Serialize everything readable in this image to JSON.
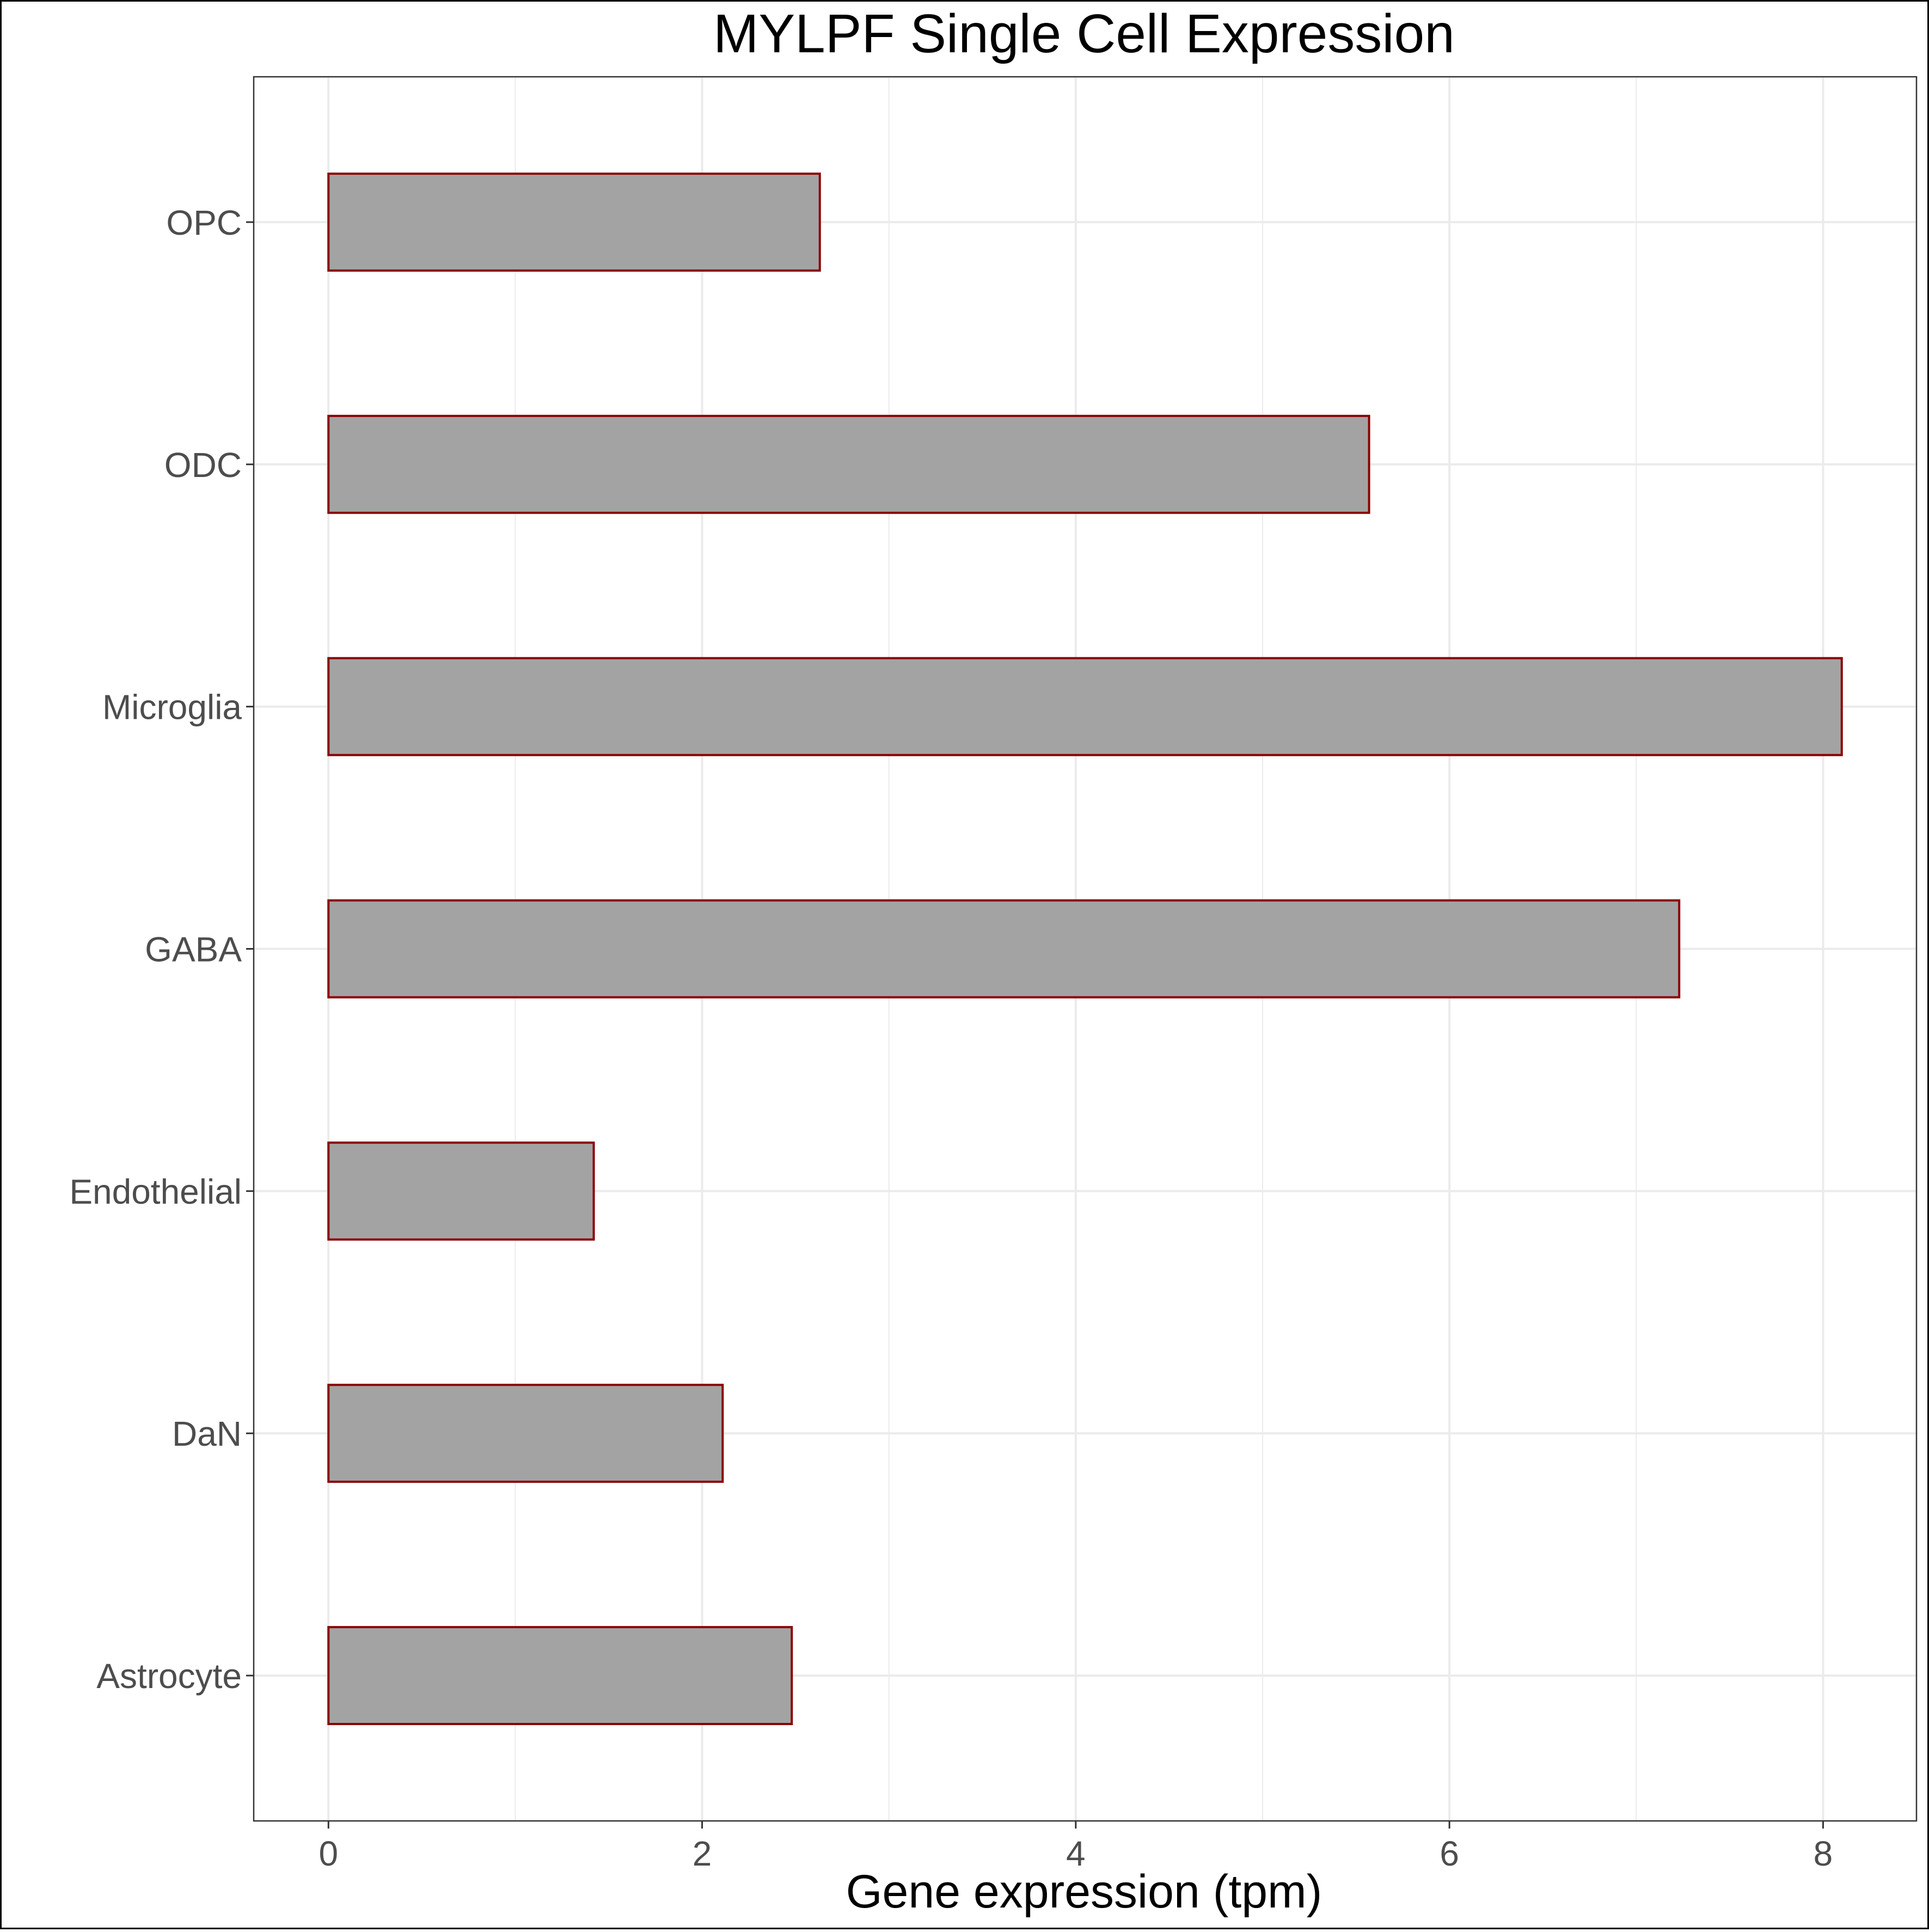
{
  "chart_data": {
    "type": "bar",
    "orientation": "horizontal",
    "title": "MYLPF Single Cell Expression",
    "xlabel": "Gene expression (tpm)",
    "ylabel": "",
    "categories": [
      "Astrocyte",
      "DaN",
      "Endothelial",
      "GABA",
      "Microglia",
      "ODC",
      "OPC"
    ],
    "values": [
      2.48,
      2.11,
      1.42,
      7.23,
      8.1,
      5.57,
      2.63
    ],
    "xlim": [
      -0.4,
      8.5
    ],
    "xticks": [
      0,
      2,
      4,
      6,
      8
    ],
    "grid": true,
    "legend": "none",
    "colors": {
      "bar_fill": "#a3a3a3",
      "bar_stroke": "#8b0000",
      "grid": "#ebebeb",
      "panel_border": "#333333",
      "text": "#4d4d4d"
    }
  }
}
